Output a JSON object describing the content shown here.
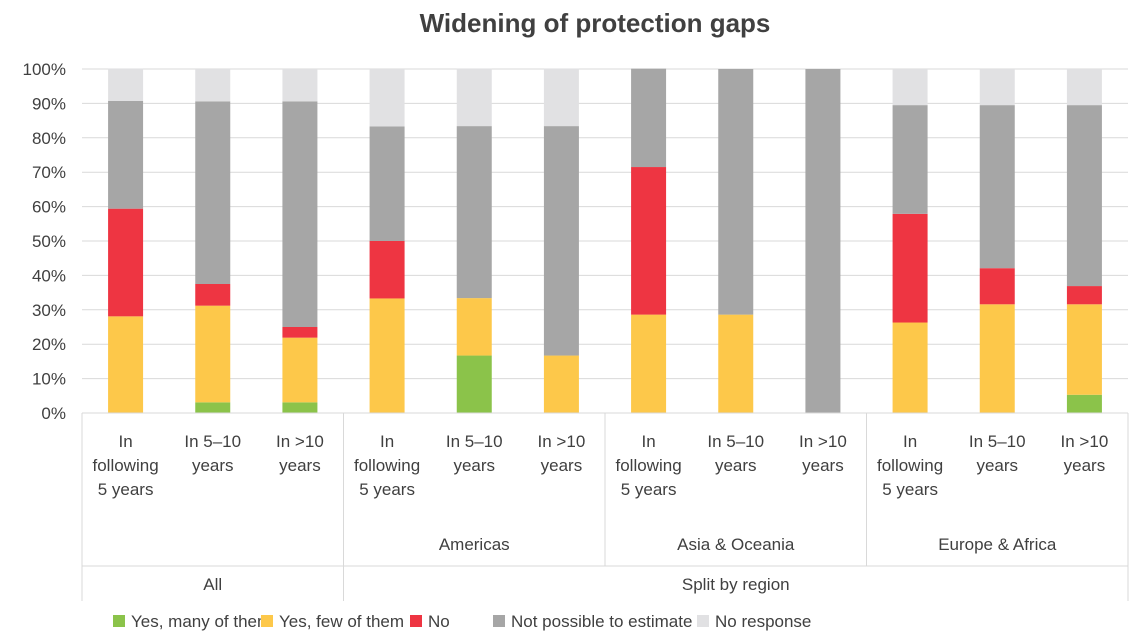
{
  "chart_data": {
    "type": "bar",
    "stacked": true,
    "title": "Widening of protection gaps",
    "ylim": [
      0,
      100
    ],
    "yticks": [
      "0%",
      "10%",
      "20%",
      "30%",
      "40%",
      "50%",
      "60%",
      "70%",
      "80%",
      "90%",
      "100%"
    ],
    "grid": true,
    "legend_position": "bottom",
    "categories": [
      "In following 5 years",
      "In 5–10 years",
      "In >10 years",
      "In following 5 years",
      "In 5–10 years",
      "In >10 years",
      "In following 5 years",
      "In 5–10 years",
      "In >10 years",
      "In following 5 years",
      "In 5–10 years",
      "In >10 years"
    ],
    "category_label_lines": [
      [
        "In",
        "following",
        "5 years"
      ],
      [
        "In 5–10",
        "years"
      ],
      [
        "In >10",
        "years"
      ],
      [
        "In",
        "following",
        "5 years"
      ],
      [
        "In 5–10",
        "years"
      ],
      [
        "In >10",
        "years"
      ],
      [
        "In",
        "following",
        "5 years"
      ],
      [
        "In 5–10",
        "years"
      ],
      [
        "In >10",
        "years"
      ],
      [
        "In",
        "following",
        "5 years"
      ],
      [
        "In 5–10",
        "years"
      ],
      [
        "In >10",
        "years"
      ]
    ],
    "groups_level1": [
      {
        "label": "",
        "span": [
          0,
          2
        ]
      },
      {
        "label": "Americas",
        "span": [
          3,
          5
        ]
      },
      {
        "label": "Asia & Oceania",
        "span": [
          6,
          8
        ]
      },
      {
        "label": "Europe & Africa",
        "span": [
          9,
          11
        ]
      }
    ],
    "groups_level2": [
      {
        "label": "All",
        "span": [
          0,
          2
        ]
      },
      {
        "label": "Split by region",
        "span": [
          3,
          11
        ]
      }
    ],
    "series": [
      {
        "name": "Yes, many of them",
        "color": "#8bc34a",
        "values": [
          0,
          3.1,
          3.1,
          0,
          16.7,
          0,
          0,
          0,
          0,
          0,
          0,
          5.3
        ]
      },
      {
        "name": "Yes, few of them",
        "color": "#fdc84a",
        "values": [
          28.1,
          28.1,
          18.8,
          33.3,
          16.7,
          16.7,
          28.6,
          28.6,
          0,
          26.3,
          31.6,
          26.3
        ]
      },
      {
        "name": "No",
        "color": "#ee3542",
        "values": [
          31.3,
          6.3,
          3.1,
          16.7,
          0,
          0,
          42.9,
          0,
          0,
          31.6,
          10.5,
          5.3
        ]
      },
      {
        "name": "Not possible to estimate",
        "color": "#a6a6a6",
        "values": [
          31.3,
          53.1,
          65.6,
          33.3,
          50.0,
          66.7,
          28.6,
          71.4,
          100,
          31.6,
          47.4,
          52.6
        ]
      },
      {
        "name": "No response",
        "color": "#e1e1e3",
        "values": [
          9.4,
          9.4,
          9.4,
          16.7,
          16.7,
          16.7,
          0,
          0,
          0,
          10.5,
          10.5,
          10.5
        ]
      }
    ]
  }
}
